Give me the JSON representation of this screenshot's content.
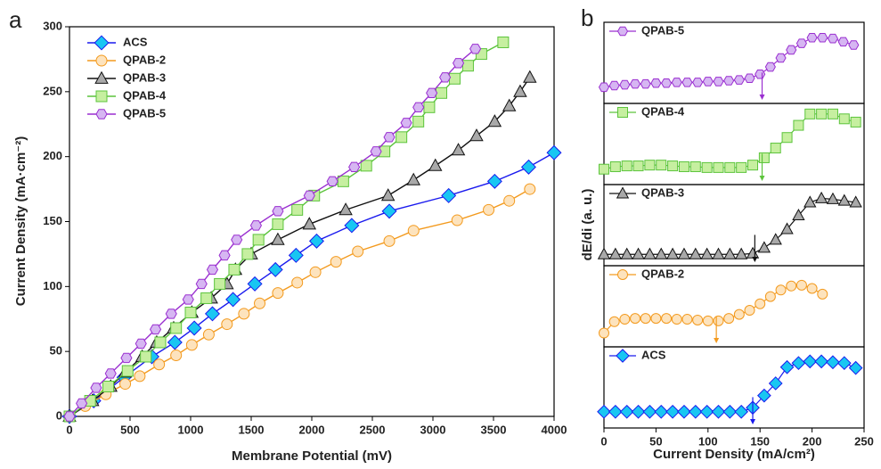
{
  "chart_data": [
    {
      "type": "line",
      "panel_label": "a",
      "xlabel": "Membrane Potential (mV)",
      "ylabel": "Current Density (mA·cm⁻²)",
      "xlim": [
        0,
        4000
      ],
      "ylim": [
        0,
        300
      ],
      "xticks": [
        0,
        500,
        1000,
        1500,
        2000,
        2500,
        3000,
        3500,
        4000
      ],
      "yticks": [
        0,
        50,
        100,
        150,
        200,
        250,
        300
      ],
      "legend": "upper left",
      "series": [
        {
          "name": "ACS",
          "color": "#1a1aee",
          "fill": "#19c6f2",
          "marker": "diamond",
          "x": [
            0,
            200,
            450,
            680,
            870,
            1030,
            1180,
            1350,
            1530,
            1700,
            1870,
            2040,
            2330,
            2640,
            3130,
            3510,
            3790,
            4000
          ],
          "values": [
            0,
            12,
            30,
            46,
            57,
            68,
            79,
            90,
            102,
            113,
            124,
            135,
            147,
            158,
            170,
            181,
            192,
            203
          ]
        },
        {
          "name": "QPAB-2",
          "color": "#f39a1e",
          "fill": "#fde3bd",
          "marker": "circle",
          "x": [
            0,
            130,
            300,
            460,
            580,
            740,
            880,
            1010,
            1150,
            1300,
            1440,
            1570,
            1720,
            1880,
            2030,
            2200,
            2380,
            2640,
            2840,
            3200,
            3460,
            3630,
            3800
          ],
          "values": [
            0,
            8,
            17,
            25,
            31,
            40,
            47,
            55,
            63,
            71,
            79,
            87,
            95,
            103,
            111,
            119,
            127,
            135,
            143,
            151,
            159,
            166,
            175
          ]
        },
        {
          "name": "QPAB-3",
          "color": "#111111",
          "fill": "#a9a9a9",
          "marker": "triangle",
          "x": [
            0,
            190,
            340,
            460,
            600,
            720,
            860,
            1010,
            1170,
            1300,
            1370,
            1500,
            1720,
            1980,
            2280,
            2630,
            2840,
            3020,
            3210,
            3360,
            3510,
            3630,
            3720,
            3800
          ],
          "values": [
            0,
            12,
            23,
            34,
            46,
            57,
            68,
            80,
            91,
            102,
            113,
            125,
            136,
            148,
            159,
            170,
            182,
            193,
            205,
            216,
            227,
            239,
            250,
            261
          ]
        },
        {
          "name": "QPAB-4",
          "color": "#5cc43c",
          "fill": "#c6efa0",
          "marker": "square",
          "x": [
            0,
            170,
            320,
            480,
            630,
            750,
            880,
            1000,
            1130,
            1240,
            1360,
            1470,
            1560,
            1720,
            1880,
            2020,
            2260,
            2450,
            2600,
            2740,
            2880,
            2970,
            3070,
            3180,
            3290,
            3400,
            3580
          ],
          "values": [
            0,
            12,
            23,
            35,
            46,
            57,
            68,
            80,
            91,
            102,
            113,
            125,
            136,
            148,
            159,
            170,
            181,
            193,
            204,
            215,
            227,
            238,
            249,
            260,
            270,
            279,
            288
          ]
        },
        {
          "name": "QPAB-5",
          "color": "#9a2fd0",
          "fill": "#d6b6f2",
          "marker": "hexagon",
          "x": [
            0,
            100,
            220,
            340,
            470,
            590,
            710,
            840,
            980,
            1090,
            1180,
            1280,
            1380,
            1540,
            1720,
            1980,
            2170,
            2350,
            2530,
            2640,
            2780,
            2880,
            2990,
            3100,
            3210,
            3350
          ],
          "values": [
            0,
            10,
            22,
            33,
            45,
            56,
            67,
            79,
            90,
            102,
            113,
            124,
            136,
            147,
            158,
            170,
            181,
            192,
            204,
            215,
            226,
            238,
            249,
            261,
            272,
            283
          ]
        }
      ]
    },
    {
      "type": "line",
      "panel_label": "b",
      "xlabel": "Current Density (mA/cm²)",
      "ylabel": "dE/di (a. u.)",
      "xlim": [
        0,
        250
      ],
      "xticks": [
        0,
        50,
        100,
        150,
        200,
        250
      ],
      "series": [
        {
          "name": "QPAB-5",
          "color": "#9a2fd0",
          "fill": "#d6b6f2",
          "marker": "hexagon",
          "ylim": [
            0,
            1
          ],
          "arrow_x": 152,
          "x": [
            0,
            10,
            20,
            30,
            40,
            50,
            60,
            70,
            80,
            90,
            100,
            110,
            120,
            130,
            140,
            150,
            160,
            170,
            180,
            190,
            200,
            210,
            220,
            230,
            240
          ],
          "values": [
            0.2,
            0.22,
            0.23,
            0.24,
            0.24,
            0.25,
            0.25,
            0.26,
            0.26,
            0.26,
            0.27,
            0.27,
            0.28,
            0.29,
            0.31,
            0.36,
            0.45,
            0.56,
            0.66,
            0.74,
            0.81,
            0.81,
            0.8,
            0.76,
            0.72
          ]
        },
        {
          "name": "QPAB-4",
          "color": "#5cc43c",
          "fill": "#c6efa0",
          "marker": "square",
          "ylim": [
            0,
            1
          ],
          "arrow_x": 152,
          "x": [
            0,
            11,
            22,
            33,
            44,
            55,
            66,
            77,
            88,
            99,
            110,
            121,
            132,
            143,
            154,
            165,
            176,
            187,
            198,
            209,
            220,
            231,
            242
          ],
          "values": [
            0.19,
            0.22,
            0.23,
            0.23,
            0.24,
            0.24,
            0.23,
            0.22,
            0.22,
            0.21,
            0.21,
            0.21,
            0.21,
            0.24,
            0.33,
            0.45,
            0.58,
            0.73,
            0.87,
            0.87,
            0.87,
            0.81,
            0.77
          ]
        },
        {
          "name": "QPAB-3",
          "color": "#111111",
          "fill": "#a9a9a9",
          "marker": "triangle",
          "ylim": [
            0,
            1
          ],
          "arrow_x": 145,
          "x": [
            0,
            11,
            22,
            33,
            44,
            55,
            66,
            77,
            88,
            99,
            110,
            121,
            132,
            143,
            154,
            165,
            176,
            187,
            198,
            209,
            220,
            231,
            242
          ],
          "values": [
            0.14,
            0.14,
            0.14,
            0.14,
            0.14,
            0.14,
            0.14,
            0.14,
            0.14,
            0.14,
            0.14,
            0.14,
            0.14,
            0.15,
            0.22,
            0.32,
            0.45,
            0.62,
            0.78,
            0.83,
            0.82,
            0.8,
            0.78
          ]
        },
        {
          "name": "QPAB-2",
          "color": "#f39a1e",
          "fill": "#fde3bd",
          "marker": "circle",
          "ylim": [
            0,
            1
          ],
          "arrow_x": 108,
          "x": [
            0,
            10,
            20,
            30,
            40,
            50,
            60,
            70,
            80,
            90,
            100,
            110,
            120,
            130,
            140,
            150,
            160,
            170,
            180,
            190,
            200,
            210
          ],
          "values": [
            0.17,
            0.31,
            0.34,
            0.35,
            0.35,
            0.35,
            0.35,
            0.34,
            0.34,
            0.33,
            0.32,
            0.32,
            0.35,
            0.4,
            0.45,
            0.53,
            0.62,
            0.7,
            0.75,
            0.76,
            0.72,
            0.65
          ]
        },
        {
          "name": "ACS",
          "color": "#1a1aee",
          "fill": "#19c6f2",
          "marker": "diamond",
          "ylim": [
            0,
            1
          ],
          "arrow_x": 143,
          "x": [
            0,
            11,
            22,
            33,
            44,
            55,
            66,
            77,
            88,
            99,
            110,
            121,
            132,
            143,
            154,
            165,
            176,
            187,
            198,
            209,
            220,
            231,
            242
          ],
          "values": [
            0.2,
            0.2,
            0.2,
            0.2,
            0.2,
            0.2,
            0.2,
            0.2,
            0.2,
            0.2,
            0.2,
            0.2,
            0.2,
            0.25,
            0.4,
            0.55,
            0.75,
            0.8,
            0.82,
            0.82,
            0.81,
            0.8,
            0.74
          ]
        }
      ]
    }
  ]
}
